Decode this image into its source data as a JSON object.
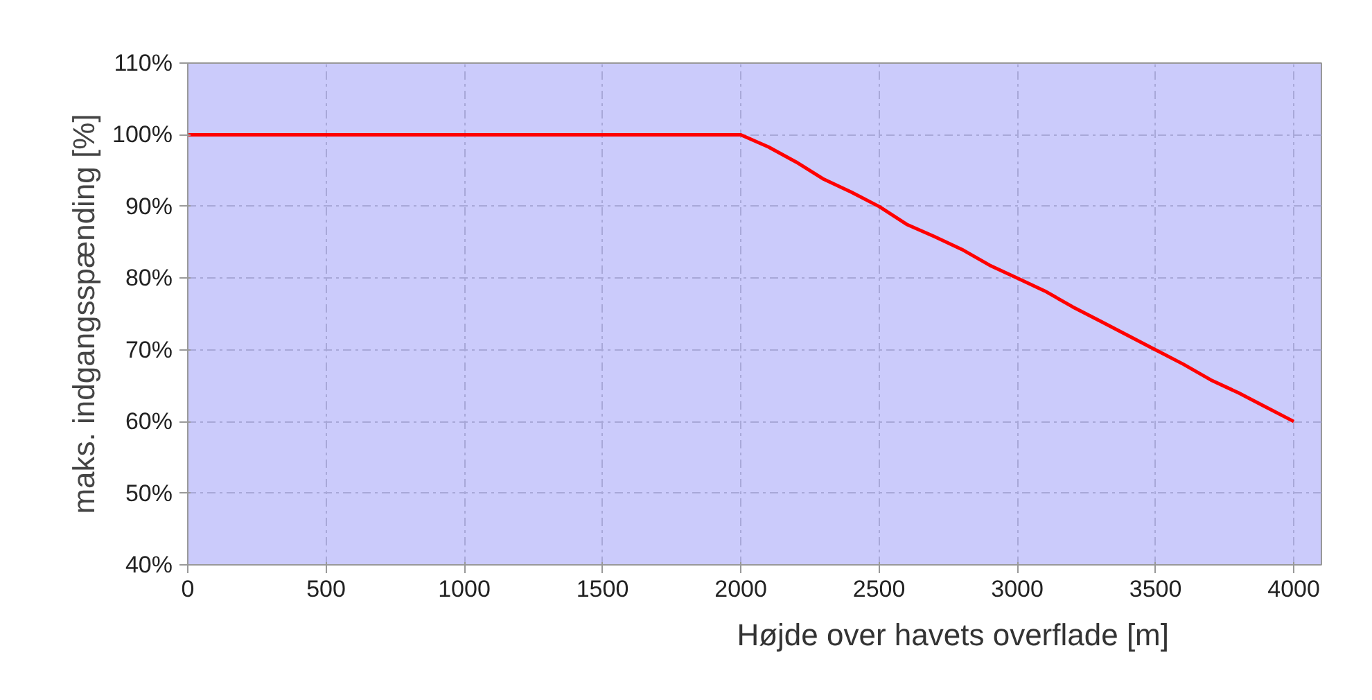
{
  "chart_data": {
    "type": "line",
    "xlabel": "Højde over havets overflade [m]",
    "ylabel": "maks. indgangsspænding [%]",
    "x": [
      0,
      500,
      1000,
      1500,
      2000,
      2100,
      2200,
      2300,
      2400,
      2500,
      2600,
      2700,
      2800,
      2900,
      3000,
      3100,
      3200,
      3300,
      3400,
      3500,
      3600,
      3700,
      3800,
      3900,
      4000
    ],
    "series": [
      {
        "color": "#ff0000",
        "values": [
          100,
          100,
          100,
          100,
          100,
          98.3,
          96.2,
          93.8,
          92,
          90,
          87.5,
          85.8,
          84,
          81.8,
          80,
          78.2,
          76,
          74,
          72,
          70,
          68,
          65.8,
          64,
          62,
          60
        ]
      }
    ],
    "xlim": [
      0,
      4100
    ],
    "ylim": [
      40,
      110
    ],
    "xticks": [
      0,
      500,
      1000,
      1500,
      2000,
      2500,
      3000,
      3500,
      4000
    ],
    "yticks": [
      {
        "value": 40,
        "label": "40%"
      },
      {
        "value": 50,
        "label": "50%"
      },
      {
        "value": 60,
        "label": "60%"
      },
      {
        "value": 70,
        "label": "70%"
      },
      {
        "value": 80,
        "label": "80%"
      },
      {
        "value": 90,
        "label": "90%"
      },
      {
        "value": 100,
        "label": "100%"
      },
      {
        "value": 110,
        "label": "110%"
      }
    ],
    "grid": true,
    "marker": "none",
    "line_style": "solid"
  }
}
